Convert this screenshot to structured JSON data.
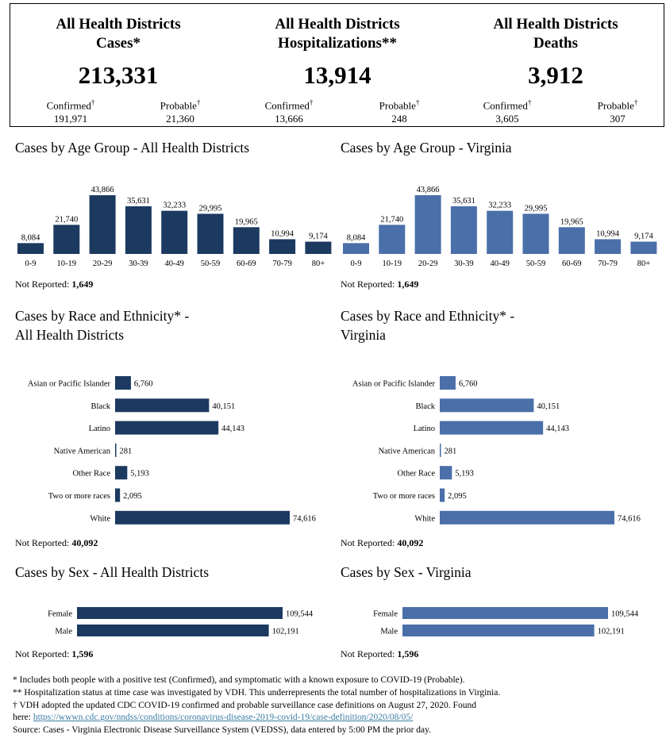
{
  "summary": {
    "cases": {
      "title_line1": "All Health Districts",
      "title_line2": "Cases*",
      "total": "213,331",
      "confirmed_label": "Confirmed",
      "confirmed": "191,971",
      "probable_label": "Probable",
      "probable": "21,360"
    },
    "hospitalizations": {
      "title_line1": "All Health Districts",
      "title_line2": "Hospitalizations**",
      "total": "13,914",
      "confirmed_label": "Confirmed",
      "confirmed": "13,666",
      "probable_label": "Probable",
      "probable": "248"
    },
    "deaths": {
      "title_line1": "All Health Districts",
      "title_line2": "Deaths",
      "total": "3,912",
      "confirmed_label": "Confirmed",
      "confirmed": "3,605",
      "probable_label": "Probable",
      "probable": "307"
    },
    "dagger": "†"
  },
  "colors": {
    "dark": "#1c3a60",
    "light": "#4a6fa9"
  },
  "sections": {
    "age_all": {
      "title": "Cases by Age Group - All Health Districts",
      "not_reported_label": "Not Reported:",
      "not_reported": "1,649"
    },
    "age_va": {
      "title": "Cases by Age Group - Virginia",
      "not_reported_label": "Not Reported:",
      "not_reported": "1,649"
    },
    "race_all": {
      "title_line1": "Cases by Race and Ethnicity* -",
      "title_line2": "All Health Districts",
      "not_reported_label": "Not Reported:",
      "not_reported": "40,092"
    },
    "race_va": {
      "title_line1": "Cases by Race and Ethnicity* -",
      "title_line2": "Virginia",
      "not_reported_label": "Not Reported:",
      "not_reported": "40,092"
    },
    "sex_all": {
      "title": "Cases by Sex - All Health Districts",
      "not_reported_label": "Not Reported:",
      "not_reported": "1,596"
    },
    "sex_va": {
      "title": "Cases by Sex - Virginia",
      "not_reported_label": "Not Reported:",
      "not_reported": "1,596"
    }
  },
  "chart_data": [
    {
      "id": "age_all",
      "type": "bar",
      "title": "Cases by Age Group - All Health Districts",
      "categories": [
        "0-9",
        "10-19",
        "20-29",
        "30-39",
        "40-49",
        "50-59",
        "60-69",
        "70-79",
        "80+"
      ],
      "values": [
        8084,
        21740,
        43866,
        35631,
        32233,
        29995,
        19965,
        10994,
        9174
      ],
      "labels": [
        "8,084",
        "21,740",
        "43,866",
        "35,631",
        "32,233",
        "29,995",
        "19,965",
        "10,994",
        "9,174"
      ]
    },
    {
      "id": "age_va",
      "type": "bar",
      "title": "Cases by Age Group - Virginia",
      "categories": [
        "0-9",
        "10-19",
        "20-29",
        "30-39",
        "40-49",
        "50-59",
        "60-69",
        "70-79",
        "80+"
      ],
      "values": [
        8084,
        21740,
        43866,
        35631,
        32233,
        29995,
        19965,
        10994,
        9174
      ],
      "labels": [
        "8,084",
        "21,740",
        "43,866",
        "35,631",
        "32,233",
        "29,995",
        "19,965",
        "10,994",
        "9,174"
      ]
    },
    {
      "id": "race_all",
      "type": "bar",
      "title": "Cases by Race and Ethnicity* - All Health Districts",
      "categories": [
        "Asian or Pacific Islander",
        "Black",
        "Latino",
        "Native American",
        "Other Race",
        "Two or more races",
        "White"
      ],
      "values": [
        6760,
        40151,
        44143,
        281,
        5193,
        2095,
        74616
      ],
      "labels": [
        "6,760",
        "40,151",
        "44,143",
        "281",
        "5,193",
        "2,095",
        "74,616"
      ]
    },
    {
      "id": "race_va",
      "type": "bar",
      "title": "Cases by Race and Ethnicity* - Virginia",
      "categories": [
        "Asian or Pacific Islander",
        "Black",
        "Latino",
        "Native American",
        "Other Race",
        "Two or more races",
        "White"
      ],
      "values": [
        6760,
        40151,
        44143,
        281,
        5193,
        2095,
        74616
      ],
      "labels": [
        "6,760",
        "40,151",
        "44,143",
        "281",
        "5,193",
        "2,095",
        "74,616"
      ]
    },
    {
      "id": "sex_all",
      "type": "bar",
      "title": "Cases by Sex - All Health Districts",
      "categories": [
        "Female",
        "Male"
      ],
      "values": [
        109544,
        102191
      ],
      "labels": [
        "109,544",
        "102,191"
      ]
    },
    {
      "id": "sex_va",
      "type": "bar",
      "title": "Cases by Sex - Virginia",
      "categories": [
        "Female",
        "Male"
      ],
      "values": [
        109544,
        102191
      ],
      "labels": [
        "109,544",
        "102,191"
      ]
    }
  ],
  "footer": {
    "note1": "* Includes both people with a positive test (Confirmed), and symptomatic with a known exposure to COVID-19 (Probable).",
    "note2": "** Hospitalization status at time case was investigated by VDH. This underrepresents the total number of hospitalizations in Virginia.",
    "note3": "† VDH adopted the updated CDC COVID-19 confirmed and probable surveillance case definitions on August 27, 2020. Found",
    "here_label": "here:",
    "link": "https://wwwn.cdc.gov/nndss/conditions/coronavirus-disease-2019-covid-19/case-definition/2020/08/05/",
    "source": "Source:  Cases - Virginia Electronic Disease Surveillance System (VEDSS), data entered by 5:00 PM the prior day."
  }
}
